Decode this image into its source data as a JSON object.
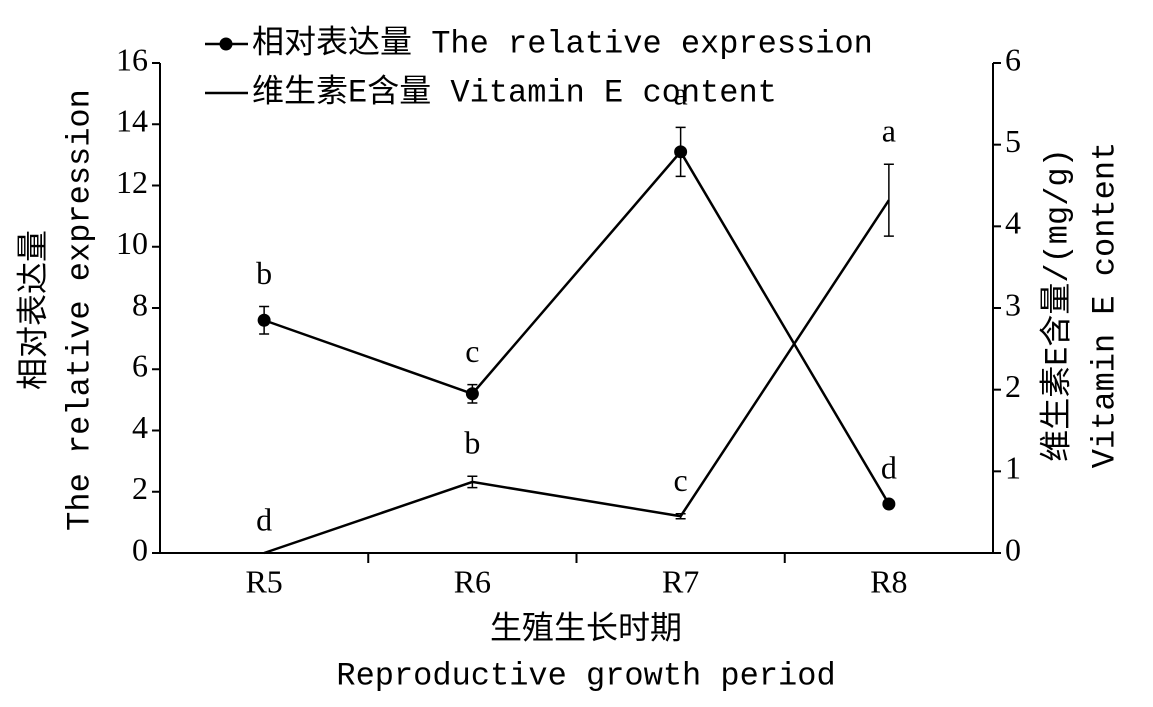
{
  "chart_data": {
    "type": "line",
    "categories": [
      "R5",
      "R6",
      "R7",
      "R8"
    ],
    "x_label": [
      "生殖生长时期",
      "Reproductive growth period"
    ],
    "y_label": [
      "相对表达量",
      "The relative expression"
    ],
    "y2_label": [
      "维生素E含量/(mg/g)",
      "Vitamin E content"
    ],
    "ylim": [
      0,
      16
    ],
    "yticks": [
      0,
      2,
      4,
      6,
      8,
      10,
      12,
      14,
      16
    ],
    "y2lim": [
      0,
      6
    ],
    "y2ticks": [
      0,
      1,
      2,
      3,
      4,
      5,
      6
    ],
    "series": [
      {
        "name": "相对表达量 The relative expression",
        "color": "#000000",
        "marker": true,
        "values": [
          7.6,
          5.2,
          13.1,
          1.6
        ],
        "errors": [
          0.45,
          0.3,
          0.8,
          0.1
        ],
        "letters": [
          "b",
          "c",
          "a",
          "d"
        ]
      },
      {
        "name": "维生素E含量 Vitamin E content",
        "color": "#000000",
        "marker": false,
        "axis": "y2",
        "values": [
          0,
          0.87,
          0.45,
          4.32
        ],
        "errors": [
          0,
          0.07,
          0.03,
          0.44
        ],
        "letters": [
          "d",
          "b",
          "c",
          "a"
        ]
      }
    ]
  }
}
